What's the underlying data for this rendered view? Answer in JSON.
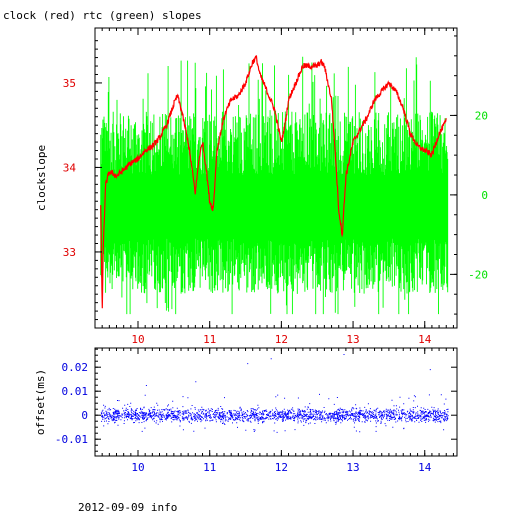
{
  "title": "clock (red) rtc (green) slopes",
  "footer": "2012-09-09 info",
  "colors": {
    "clock": "#ff0000",
    "rtc": "#00ff00",
    "offset": "#0000ff",
    "red_axis": "#e00000",
    "green_axis": "#00e000",
    "blue_axis": "#0000e0"
  },
  "chart_data": [
    {
      "type": "line",
      "title": "clock (red) rtc (green) slopes",
      "ylabel": "clockslope",
      "xlabel": "",
      "xlim": [
        9.4,
        14.45
      ],
      "ylim": [
        32.1,
        35.65
      ],
      "y2lim": [
        -33.5,
        42.0
      ],
      "x_ticks": [
        "10",
        "11",
        "12",
        "13",
        "14"
      ],
      "y_ticks": [
        "33",
        "34",
        "35"
      ],
      "y2_ticks": [
        "20",
        "0",
        "-20"
      ],
      "grid": false,
      "series": [
        {
          "name": "clock",
          "color": "#ff0000",
          "axis": "left",
          "points": [
            [
              9.48,
              33.55
            ],
            [
              9.5,
              32.3
            ],
            [
              9.52,
              33.2
            ],
            [
              9.55,
              33.8
            ],
            [
              9.6,
              33.95
            ],
            [
              9.7,
              33.9
            ],
            [
              9.8,
              33.97
            ],
            [
              9.9,
              34.05
            ],
            [
              10.0,
              34.1
            ],
            [
              10.1,
              34.2
            ],
            [
              10.2,
              34.25
            ],
            [
              10.3,
              34.35
            ],
            [
              10.4,
              34.5
            ],
            [
              10.5,
              34.75
            ],
            [
              10.55,
              34.85
            ],
            [
              10.6,
              34.7
            ],
            [
              10.7,
              34.3
            ],
            [
              10.75,
              34.0
            ],
            [
              10.8,
              33.7
            ],
            [
              10.85,
              34.1
            ],
            [
              10.9,
              34.3
            ],
            [
              10.95,
              34.0
            ],
            [
              11.0,
              33.6
            ],
            [
              11.05,
              33.5
            ],
            [
              11.1,
              34.2
            ],
            [
              11.2,
              34.6
            ],
            [
              11.3,
              34.8
            ],
            [
              11.4,
              34.85
            ],
            [
              11.5,
              35.0
            ],
            [
              11.6,
              35.25
            ],
            [
              11.65,
              35.3
            ],
            [
              11.7,
              35.1
            ],
            [
              11.8,
              34.9
            ],
            [
              11.9,
              34.7
            ],
            [
              11.95,
              34.5
            ],
            [
              12.0,
              34.3
            ],
            [
              12.05,
              34.5
            ],
            [
              12.1,
              34.8
            ],
            [
              12.2,
              35.0
            ],
            [
              12.3,
              35.2
            ],
            [
              12.4,
              35.2
            ],
            [
              12.5,
              35.2
            ],
            [
              12.55,
              35.25
            ],
            [
              12.6,
              35.2
            ],
            [
              12.7,
              34.8
            ],
            [
              12.75,
              34.2
            ],
            [
              12.8,
              33.5
            ],
            [
              12.85,
              33.2
            ],
            [
              12.9,
              33.9
            ],
            [
              13.0,
              34.3
            ],
            [
              13.1,
              34.45
            ],
            [
              13.2,
              34.6
            ],
            [
              13.3,
              34.8
            ],
            [
              13.4,
              34.9
            ],
            [
              13.5,
              35.0
            ],
            [
              13.6,
              34.9
            ],
            [
              13.7,
              34.7
            ],
            [
              13.8,
              34.4
            ],
            [
              13.9,
              34.25
            ],
            [
              14.0,
              34.2
            ],
            [
              14.1,
              34.15
            ],
            [
              14.2,
              34.4
            ],
            [
              14.3,
              34.55
            ]
          ]
        },
        {
          "name": "rtc",
          "color": "#00ff00",
          "axis": "right",
          "x_range": [
            9.48,
            14.32
          ],
          "center": -3,
          "spread": [
            -24,
            33
          ]
        }
      ]
    },
    {
      "type": "scatter",
      "ylabel": "offset(ms)",
      "xlim": [
        9.4,
        14.45
      ],
      "ylim": [
        -0.017,
        0.028
      ],
      "x_ticks": [
        "10",
        "11",
        "12",
        "13",
        "14"
      ],
      "y_ticks": [
        "0.02",
        "0.01",
        "0",
        "-0.01"
      ],
      "series": [
        {
          "name": "offset",
          "color": "#0000ff",
          "x_range": [
            9.48,
            14.32
          ],
          "center": 0.0,
          "spread": [
            -0.012,
            0.026
          ]
        }
      ]
    }
  ]
}
